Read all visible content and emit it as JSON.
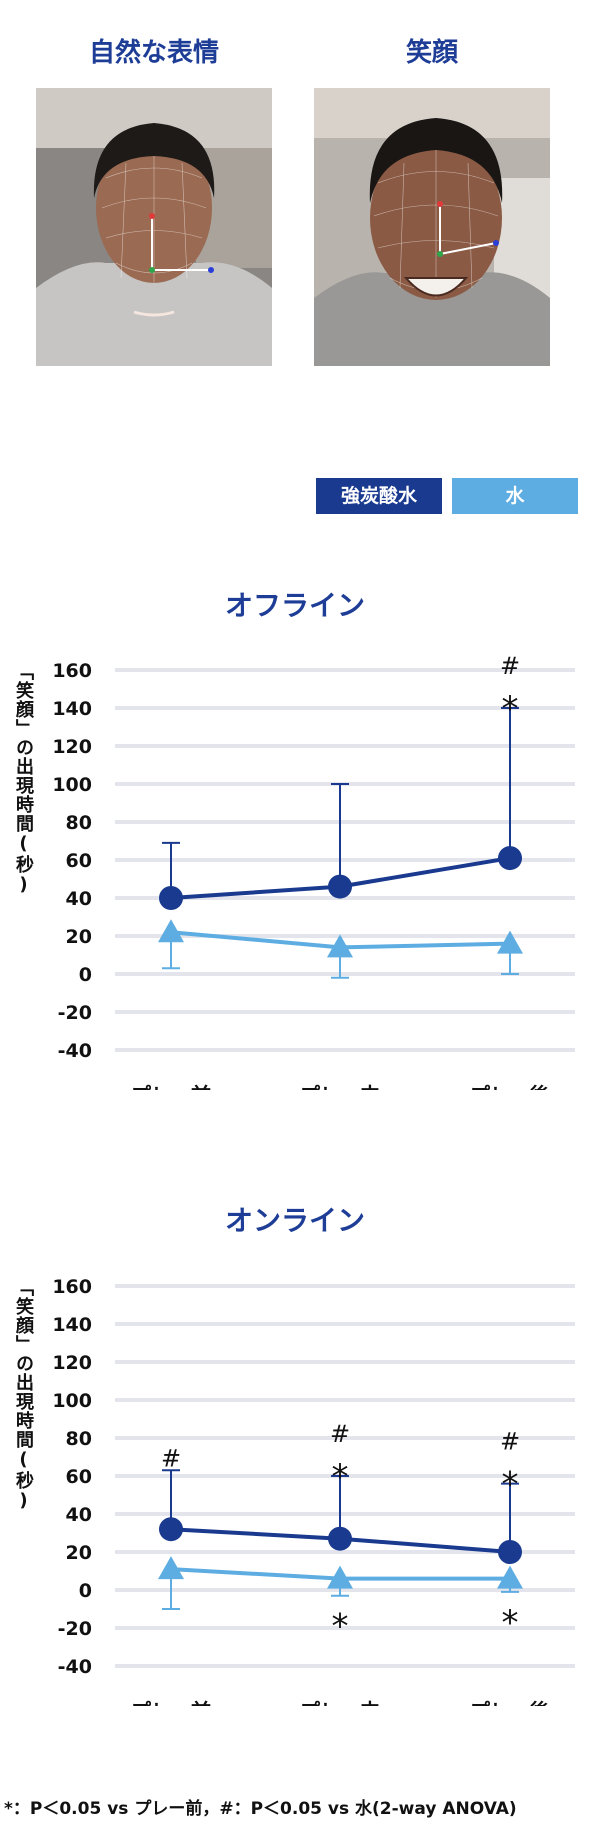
{
  "photos": [
    {
      "title": "自然な表情",
      "expression": "neutral"
    },
    {
      "title": "笑顔",
      "expression": "smile"
    }
  ],
  "legend": [
    {
      "label": "強炭酸水",
      "color": "#1a3a8f"
    },
    {
      "label": "水",
      "color": "#5dade2"
    }
  ],
  "ylabel": "「笑顔」の出現時間(秒)",
  "footnote": "*：P＜0.05 vs プレー前，#：P＜0.05 vs 水(2-way ANOVA)",
  "chart_data": [
    {
      "type": "line",
      "title": "オフライン",
      "categories": [
        "プレー前",
        "プレー中",
        "プレー後"
      ],
      "ylim": [
        -40,
        160
      ],
      "yticks": [
        160,
        140,
        120,
        100,
        80,
        60,
        40,
        20,
        0,
        -20,
        -40
      ],
      "grid": true,
      "series": [
        {
          "name": "強炭酸水",
          "marker": "circle",
          "color": "#1a3a8f",
          "values": [
            40,
            46,
            61
          ],
          "error": [
            29,
            54,
            79
          ],
          "above_marks": [
            [],
            [],
            [
              "*",
              "#"
            ]
          ]
        },
        {
          "name": "水",
          "marker": "triangle",
          "color": "#5dade2",
          "values": [
            22,
            14,
            16
          ],
          "error_down": [
            19,
            16,
            16
          ],
          "below_marks": [
            [],
            [],
            []
          ]
        }
      ]
    },
    {
      "type": "line",
      "title": "オンライン",
      "categories": [
        "プレー前",
        "プレー中",
        "プレー後"
      ],
      "ylim": [
        -40,
        160
      ],
      "yticks": [
        160,
        140,
        120,
        100,
        80,
        60,
        40,
        20,
        0,
        -20,
        -40
      ],
      "grid": true,
      "series": [
        {
          "name": "強炭酸水",
          "marker": "circle",
          "color": "#1a3a8f",
          "values": [
            32,
            27,
            20
          ],
          "error": [
            31,
            33,
            36
          ],
          "above_marks": [
            [
              "#"
            ],
            [
              "*",
              "#"
            ],
            [
              "*",
              "#"
            ]
          ]
        },
        {
          "name": "水",
          "marker": "triangle",
          "color": "#5dade2",
          "values": [
            11,
            6,
            6
          ],
          "error_down": [
            21,
            9,
            7
          ],
          "below_marks": [
            [],
            [
              "*"
            ],
            [
              "*"
            ]
          ]
        }
      ]
    }
  ]
}
